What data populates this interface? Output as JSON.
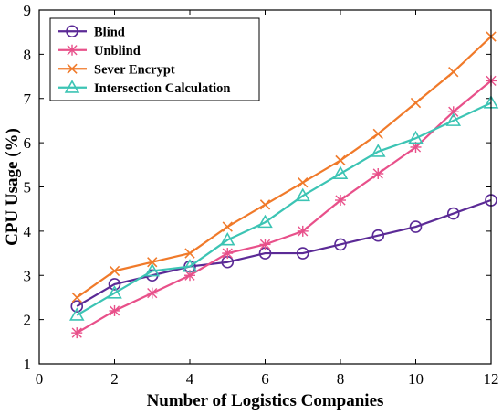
{
  "chart_data": {
    "type": "line",
    "title": "",
    "xlabel": "Number of Logistics Companies",
    "ylabel": "CPU Usage (%)",
    "xlim": [
      0,
      12
    ],
    "ylim": [
      1,
      9
    ],
    "xticks": [
      0,
      2,
      4,
      6,
      8,
      10,
      12
    ],
    "yticks": [
      1,
      2,
      3,
      4,
      5,
      6,
      7,
      8,
      9
    ],
    "grid": false,
    "legend_position": "top-left",
    "x": [
      1,
      2,
      3,
      4,
      5,
      6,
      7,
      8,
      9,
      10,
      11,
      12
    ],
    "series": [
      {
        "name": "Blind",
        "color": "#5b2a96",
        "marker": "circle",
        "values": [
          2.3,
          2.8,
          3.0,
          3.2,
          3.3,
          3.5,
          3.5,
          3.7,
          3.9,
          4.1,
          4.4,
          4.7
        ]
      },
      {
        "name": "Unblind",
        "color": "#e8508a",
        "marker": "asterisk",
        "values": [
          1.7,
          2.2,
          2.6,
          3.0,
          3.5,
          3.7,
          4.0,
          4.7,
          5.3,
          5.9,
          6.7,
          7.4
        ]
      },
      {
        "name": "Sever Encrypt",
        "color": "#f07a2a",
        "marker": "x",
        "values": [
          2.5,
          3.1,
          3.3,
          3.5,
          4.1,
          4.6,
          5.1,
          5.6,
          6.2,
          6.9,
          7.6,
          8.4
        ]
      },
      {
        "name": "Intersection Calculation",
        "color": "#3cc4b4",
        "marker": "triangle",
        "values": [
          2.1,
          2.6,
          3.1,
          3.2,
          3.8,
          4.2,
          4.8,
          5.3,
          5.8,
          6.1,
          6.5,
          6.9
        ]
      }
    ]
  }
}
